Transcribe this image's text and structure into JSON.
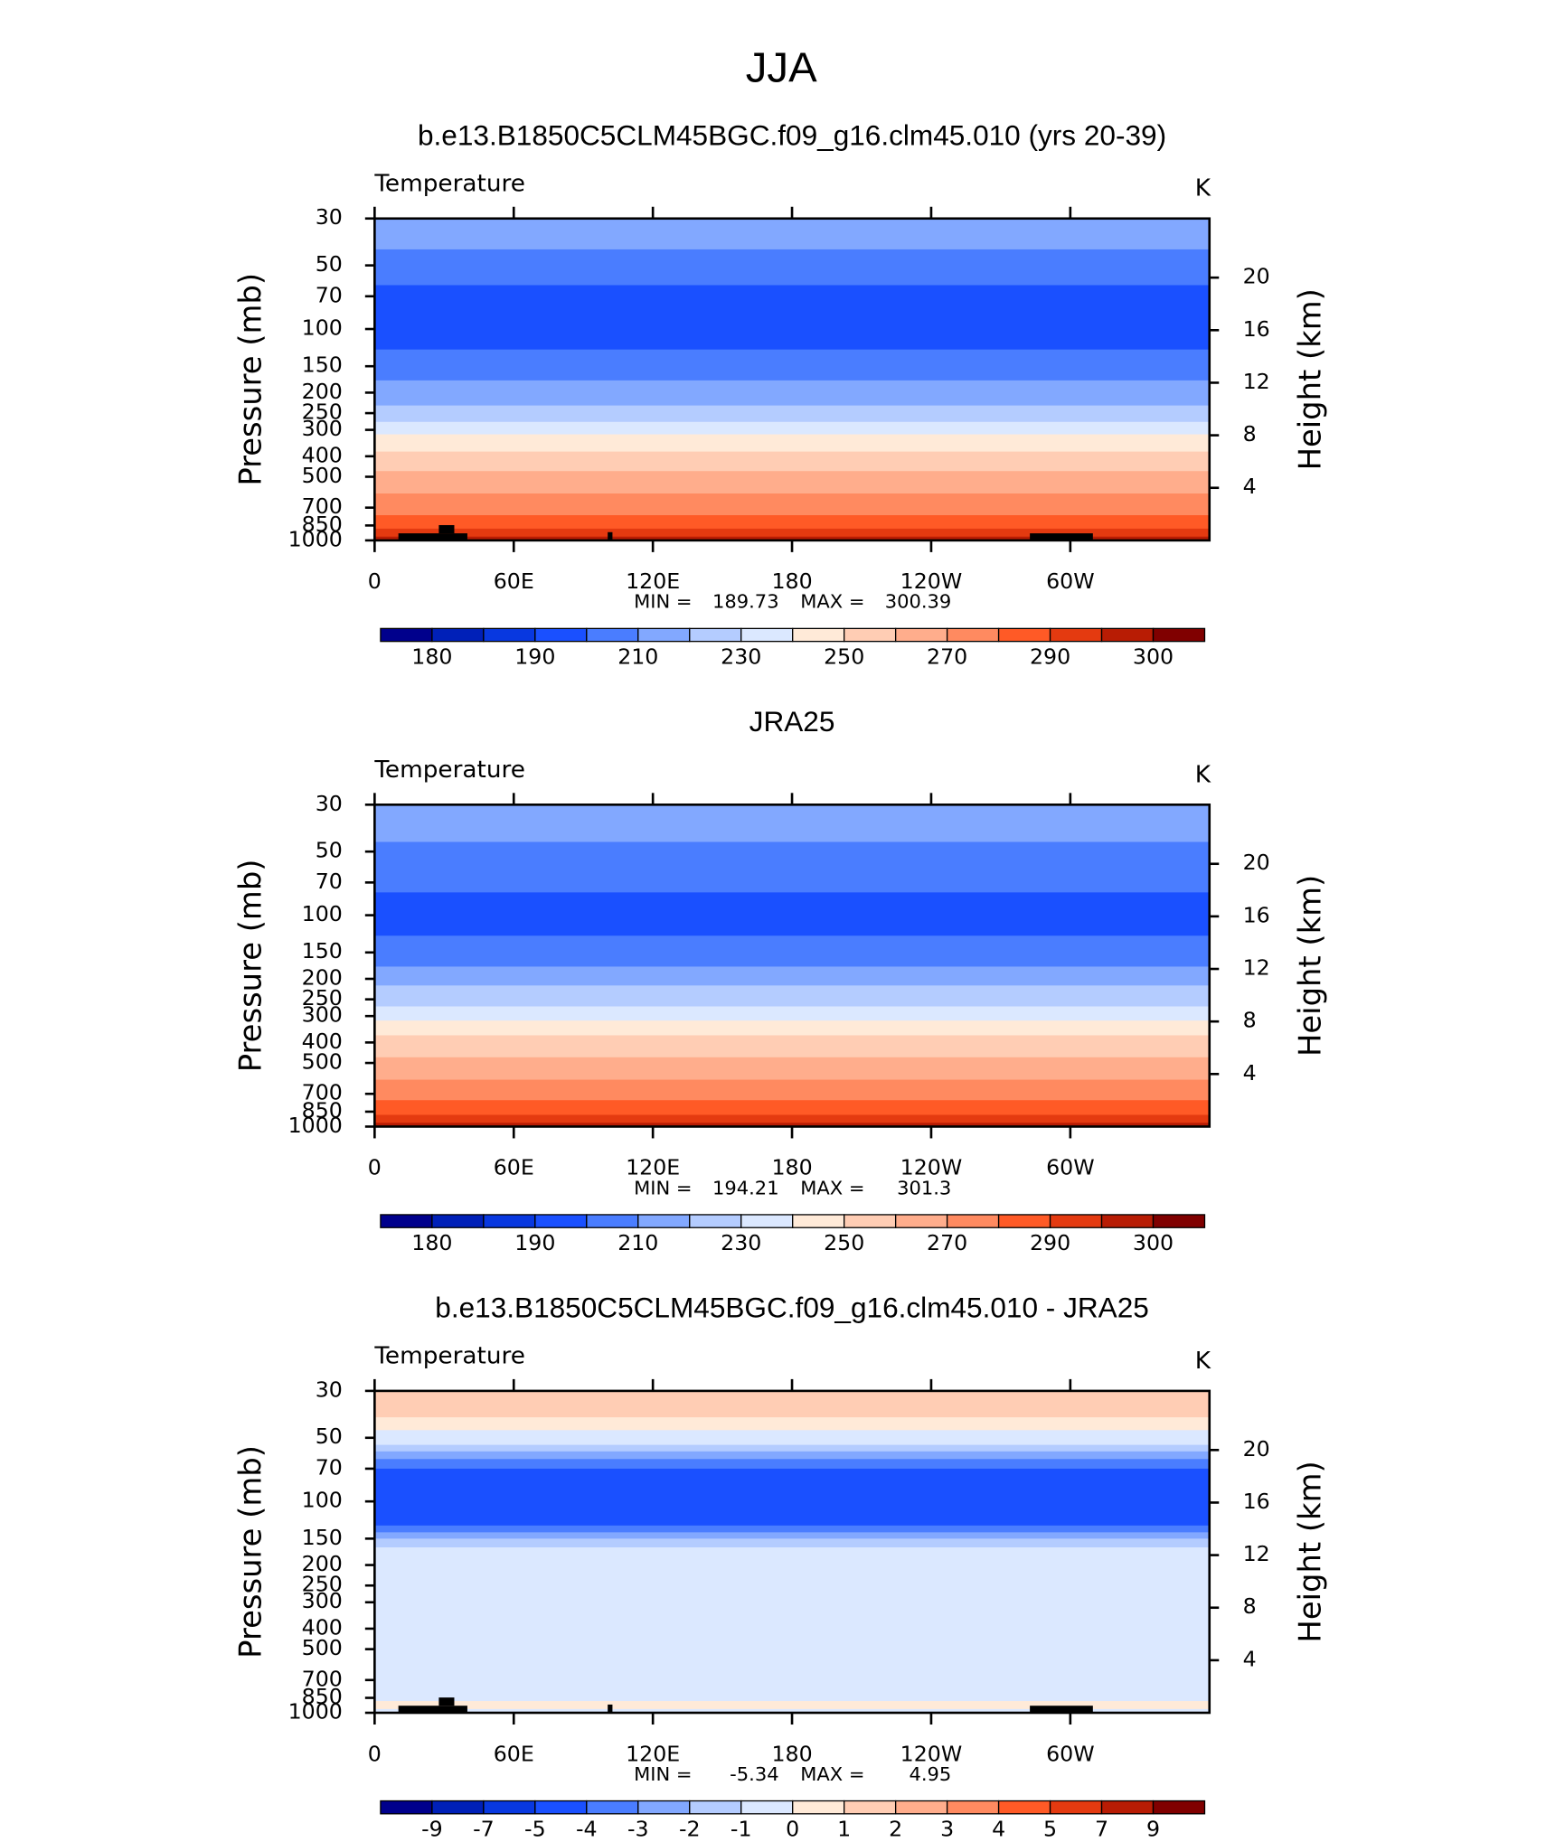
{
  "title": "JJA",
  "chart_data": [
    {
      "type": "contour",
      "title": "b.e13.B1850C5CLM45BGC.f09_g16.clm45.010 (yrs 20-39)",
      "left_label": "Temperature",
      "right_label": "K",
      "ylabel": "Pressure (mb)",
      "y2label": "Height (km)",
      "log_y": true,
      "xlim": [
        0,
        360
      ],
      "xticks": [
        0,
        {
          "value": 60,
          "label": "60E"
        },
        {
          "value": 120,
          "label": "120E"
        },
        180,
        {
          "value": 240,
          "label": "120W"
        },
        {
          "value": 300,
          "label": "60W"
        }
      ],
      "ylim": [
        1000,
        30
      ],
      "yticks": [
        30,
        50,
        70,
        100,
        150,
        200,
        250,
        300,
        400,
        500,
        700,
        850,
        1000
      ],
      "y2lim": [
        0,
        24.5
      ],
      "y2ticks": [
        4,
        8,
        12,
        16,
        20
      ],
      "band_edges": [
        30,
        42,
        62,
        125,
        175,
        230,
        275,
        315,
        380,
        470,
        600,
        760,
        880,
        960,
        1000
      ],
      "band_values": [
        215,
        205,
        195,
        205,
        215,
        225,
        235,
        245,
        255,
        265,
        275,
        285,
        292,
        297
      ],
      "min_label": "MIN =",
      "min": 189.73,
      "max_label": "MAX =",
      "max": 300.39,
      "levels": [
        180,
        185,
        190,
        200,
        210,
        220,
        230,
        240,
        250,
        260,
        270,
        280,
        290,
        295,
        300
      ],
      "colors": [
        "#00008c",
        "#0020b8",
        "#0838e0",
        "#1a50ff",
        "#4a7dff",
        "#82a8ff",
        "#b4ccff",
        "#dbe8ff",
        "#ffead8",
        "#ffcdb4",
        "#ffad8c",
        "#ff8a60",
        "#ff5a26",
        "#e43a10",
        "#b81c04",
        "#800000"
      ],
      "colorbar_ticks": [
        180,
        190,
        210,
        230,
        250,
        270,
        290,
        300
      ]
    },
    {
      "type": "contour",
      "title": "JRA25",
      "left_label": "Temperature",
      "right_label": "K",
      "ylabel": "Pressure (mb)",
      "y2label": "Height (km)",
      "log_y": true,
      "xlim": [
        0,
        360
      ],
      "xticks": [
        0,
        {
          "value": 60,
          "label": "60E"
        },
        {
          "value": 120,
          "label": "120E"
        },
        180,
        {
          "value": 240,
          "label": "120W"
        },
        {
          "value": 300,
          "label": "60W"
        }
      ],
      "ylim": [
        1000,
        30
      ],
      "yticks": [
        30,
        50,
        70,
        100,
        150,
        200,
        250,
        300,
        400,
        500,
        700,
        850,
        1000
      ],
      "y2lim": [
        0,
        24.5
      ],
      "y2ticks": [
        4,
        8,
        12,
        16,
        20
      ],
      "band_edges": [
        30,
        45,
        78,
        125,
        175,
        215,
        270,
        315,
        370,
        470,
        600,
        750,
        880,
        960,
        1000
      ],
      "band_values": [
        215,
        205,
        195,
        205,
        215,
        225,
        235,
        245,
        255,
        265,
        275,
        285,
        292,
        297
      ],
      "min_label": "MIN =",
      "min": 194.21,
      "max_label": "MAX =",
      "max": 301.3,
      "levels": [
        180,
        185,
        190,
        200,
        210,
        220,
        230,
        240,
        250,
        260,
        270,
        280,
        290,
        295,
        300
      ],
      "colors": [
        "#00008c",
        "#0020b8",
        "#0838e0",
        "#1a50ff",
        "#4a7dff",
        "#82a8ff",
        "#b4ccff",
        "#dbe8ff",
        "#ffead8",
        "#ffcdb4",
        "#ffad8c",
        "#ff8a60",
        "#ff5a26",
        "#e43a10",
        "#b81c04",
        "#800000"
      ],
      "colorbar_ticks": [
        180,
        190,
        210,
        230,
        250,
        270,
        290,
        300
      ]
    },
    {
      "type": "contour",
      "title": "b.e13.B1850C5CLM45BGC.f09_g16.clm45.010 - JRA25",
      "left_label": "Temperature",
      "right_label": "K",
      "ylabel": "Pressure (mb)",
      "y2label": "Height (km)",
      "log_y": true,
      "xlim": [
        0,
        360
      ],
      "xticks": [
        0,
        {
          "value": 60,
          "label": "60E"
        },
        {
          "value": 120,
          "label": "120E"
        },
        180,
        {
          "value": 240,
          "label": "120W"
        },
        {
          "value": 300,
          "label": "60W"
        }
      ],
      "ylim": [
        1000,
        30
      ],
      "yticks": [
        30,
        50,
        70,
        100,
        150,
        200,
        250,
        300,
        400,
        500,
        700,
        850,
        1000
      ],
      "y2lim": [
        0,
        24.5
      ],
      "y2ticks": [
        4,
        8,
        12,
        16,
        20
      ],
      "band_edges": [
        30,
        40,
        46,
        54,
        58,
        63,
        70,
        130,
        140,
        150,
        165,
        880,
        960,
        1000
      ],
      "band_values": [
        1.5,
        0.5,
        -0.5,
        -1.5,
        -2.5,
        -3.5,
        -4.5,
        -3.5,
        -2.5,
        -1.5,
        -0.5,
        0.5,
        -0.5
      ],
      "min_label": "MIN =",
      "min": -5.34,
      "max_label": "MAX =",
      "max": 4.95,
      "levels": [
        -9,
        -7,
        -5,
        -4,
        -3,
        -2,
        -1,
        0,
        1,
        2,
        3,
        4,
        5,
        7,
        9
      ],
      "colors": [
        "#00008c",
        "#0020b8",
        "#0838e0",
        "#1a50ff",
        "#4a7dff",
        "#82a8ff",
        "#b4ccff",
        "#dbe8ff",
        "#ffead8",
        "#ffcdb4",
        "#ffad8c",
        "#ff8a60",
        "#ff5a26",
        "#e43a10",
        "#b81c04",
        "#800000"
      ],
      "colorbar_ticks": [
        -9,
        -7,
        -5,
        -4,
        -3,
        -2,
        -1,
        0,
        1,
        2,
        3,
        4,
        5,
        7,
        9
      ]
    }
  ]
}
